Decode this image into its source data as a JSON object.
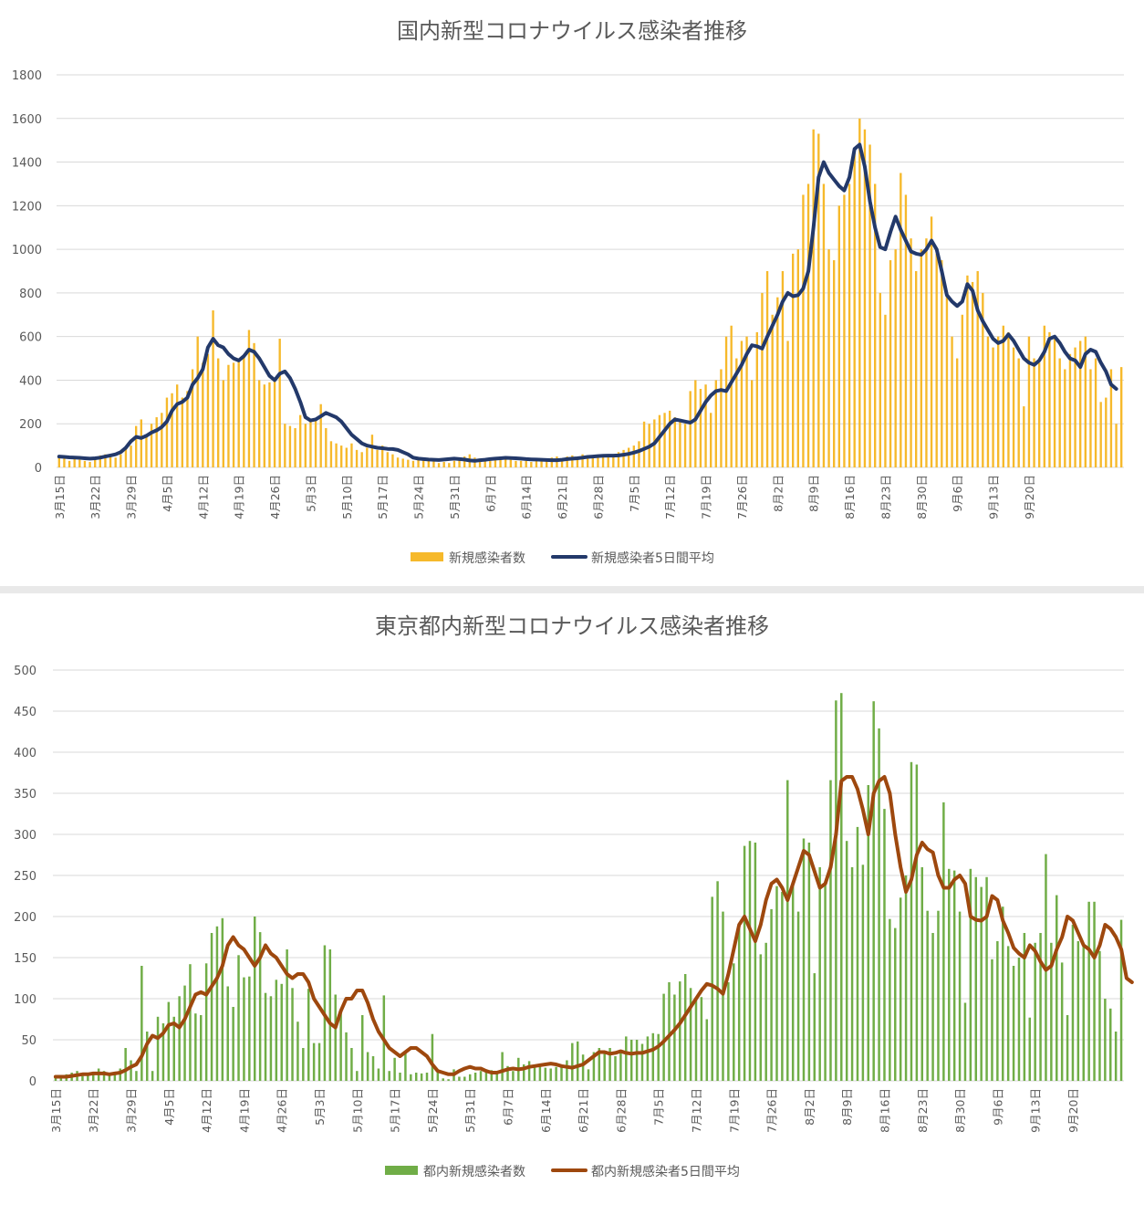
{
  "charts": [
    {
      "id": "national",
      "chart_data": {
        "type": "bar+line",
        "title": "国内新型コロナウイルス感染者推移",
        "ylim": [
          0,
          1800
        ],
        "yticks": [
          0,
          200,
          400,
          600,
          800,
          1000,
          1200,
          1400,
          1600,
          1800
        ],
        "grid": true,
        "legend": "bottom",
        "x_tick_labels": [
          "3月15日",
          "3月22日",
          "3月29日",
          "4月5日",
          "4月12日",
          "4月19日",
          "4月26日",
          "5月3日",
          "5月10日",
          "5月17日",
          "5月24日",
          "5月31日",
          "6月7日",
          "6月14日",
          "6月21日",
          "6月28日",
          "7月5日",
          "7月12日",
          "7月19日",
          "7月26日",
          "8月2日",
          "8月9日",
          "8月16日",
          "8月23日",
          "8月30日",
          "9月6日",
          "9月13日",
          "9月20日"
        ],
        "series": [
          {
            "name": "新規感染者数",
            "kind": "bar",
            "color": "#f6b92b",
            "values": [
              50,
              40,
              30,
              45,
              35,
              30,
              25,
              40,
              55,
              60,
              50,
              45,
              60,
              90,
              100,
              190,
              220,
              150,
              200,
              230,
              250,
              320,
              340,
              380,
              320,
              350,
              450,
              600,
              480,
              520,
              720,
              500,
              400,
              470,
              480,
              490,
              510,
              630,
              570,
              400,
              380,
              390,
              410,
              590,
              200,
              190,
              180,
              240,
              200,
              210,
              220,
              290,
              180,
              120,
              110,
              100,
              90,
              110,
              80,
              70,
              90,
              150,
              80,
              100,
              70,
              60,
              45,
              40,
              35,
              30,
              35,
              45,
              40,
              30,
              20,
              25,
              20,
              30,
              40,
              50,
              60,
              45,
              40,
              35,
              30,
              40,
              50,
              40,
              35,
              30,
              30,
              30,
              25,
              35,
              40,
              40,
              45,
              50,
              40,
              50,
              55,
              50,
              60,
              55,
              50,
              45,
              60,
              50,
              60,
              70,
              80,
              90,
              100,
              120,
              210,
              200,
              220,
              240,
              250,
              260,
              230,
              210,
              200,
              350,
              400,
              360,
              380,
              250,
              400,
              450,
              600,
              650,
              500,
              580,
              600,
              400,
              620,
              800,
              900,
              700,
              780,
              900,
              580,
              980,
              1000,
              1250,
              1300,
              1550,
              1530,
              1300,
              1000,
              950,
              1200,
              1250,
              1300,
              1450,
              1600,
              1550,
              1480,
              1300,
              800,
              700,
              950,
              1000,
              1350,
              1250,
              1050,
              900,
              1000,
              1050,
              1150,
              980,
              950,
              800,
              600,
              500,
              700,
              880,
              850,
              900,
              800,
              600,
              550,
              600,
              650,
              620,
              550,
              500,
              280,
              600,
              500,
              480,
              650,
              620,
              600,
              500,
              450,
              520,
              550,
              580,
              600,
              450,
              500,
              300,
              320,
              450,
              200,
              460
            ]
          },
          {
            "name": "新規感染者5日間平均",
            "kind": "line",
            "color": "#23396a",
            "values": [
              50,
              48,
              46,
              45,
              44,
              42,
              40,
              42,
              45,
              50,
              55,
              60,
              70,
              90,
              120,
              140,
              135,
              145,
              160,
              170,
              185,
              210,
              260,
              290,
              300,
              320,
              380,
              410,
              450,
              550,
              590,
              560,
              550,
              520,
              500,
              490,
              510,
              540,
              530,
              500,
              460,
              420,
              400,
              430,
              440,
              410,
              360,
              300,
              230,
              215,
              220,
              235,
              250,
              240,
              230,
              210,
              180,
              150,
              130,
              110,
              100,
              95,
              90,
              88,
              85,
              84,
              80,
              70,
              60,
              45,
              40,
              38,
              36,
              35,
              34,
              36,
              38,
              40,
              38,
              36,
              32,
              30,
              33,
              35,
              38,
              40,
              42,
              44,
              43,
              42,
              40,
              38,
              37,
              36,
              35,
              34,
              33,
              33,
              35,
              38,
              40,
              42,
              45,
              48,
              50,
              52,
              53,
              54,
              54,
              55,
              58,
              62,
              68,
              75,
              85,
              95,
              110,
              140,
              170,
              200,
              220,
              215,
              210,
              205,
              220,
              260,
              300,
              330,
              350,
              355,
              350,
              390,
              430,
              470,
              520,
              560,
              555,
              545,
              600,
              650,
              700,
              760,
              800,
              785,
              790,
              820,
              900,
              1100,
              1330,
              1400,
              1350,
              1320,
              1290,
              1270,
              1330,
              1460,
              1480,
              1380,
              1220,
              1100,
              1010,
              1000,
              1080,
              1150,
              1090,
              1040,
              990,
              980,
              975,
              1000,
              1040,
              1000,
              900,
              790,
              760,
              740,
              760,
              840,
              810,
              720,
              670,
              630,
              590,
              570,
              580,
              610,
              580,
              540,
              500,
              480,
              470,
              490,
              530,
              590,
              600,
              570,
              530,
              500,
              490,
              460,
              520,
              540,
              530,
              480,
              440,
              380,
              360
            ]
          }
        ]
      }
    },
    {
      "id": "tokyo",
      "chart_data": {
        "type": "bar+line",
        "title": "東京都内新型コロナウイルス感染者推移",
        "ylim": [
          0,
          500
        ],
        "yticks": [
          0,
          50,
          100,
          150,
          200,
          250,
          300,
          350,
          400,
          450,
          500
        ],
        "grid": true,
        "legend": "bottom",
        "x_tick_labels": [
          "3月15日",
          "3月22日",
          "3月29日",
          "4月5日",
          "4月12日",
          "4月19日",
          "4月26日",
          "5月3日",
          "5月10日",
          "5月17日",
          "5月24日",
          "5月31日",
          "6月7日",
          "6月14日",
          "6月21日",
          "6月28日",
          "7月5日",
          "7月12日",
          "7月19日",
          "7月26日",
          "8月2日",
          "8月9日",
          "8月16日",
          "8月23日",
          "8月30日",
          "9月6日",
          "9月13日",
          "9月20日"
        ],
        "series": [
          {
            "name": "都内新規感染者数",
            "kind": "bar",
            "color": "#70ad47",
            "values": [
              5,
              4,
              8,
              10,
              12,
              6,
              8,
              10,
              15,
              12,
              8,
              10,
              15,
              40,
              25,
              12,
              140,
              60,
              12,
              78,
              70,
              96,
              78,
              103,
              116,
              142,
              82,
              80,
              143,
              180,
              188,
              198,
              115,
              90,
              153,
              126,
              127,
              200,
              181,
              107,
              103,
              123,
              118,
              160,
              113,
              72,
              40,
              112,
              46,
              46,
              165,
              160,
              105,
              88,
              59,
              40,
              12,
              80,
              35,
              30,
              15,
              104,
              12,
              28,
              10,
              35,
              8,
              10,
              9,
              10,
              57,
              10,
              3,
              2,
              14,
              5,
              5,
              8,
              10,
              12,
              14,
              13,
              10,
              35,
              18,
              12,
              28,
              20,
              24,
              20,
              18,
              16,
              15,
              17,
              20,
              25,
              46,
              48,
              32,
              14,
              35,
              40,
              34,
              40,
              30,
              34,
              54,
              50,
              50,
              45,
              54,
              58,
              57,
              106,
              120,
              105,
              121,
              130,
              113,
              100,
              102,
              75,
              224,
              243,
              206,
              120,
              143,
              187,
              286,
              292,
              290,
              154,
              168,
              209,
              237,
              230,
              366,
              242,
              206,
              295,
              290,
              131,
              260,
              239,
              366,
              463,
              472,
              292,
              260,
              309,
              263,
              360,
              462,
              429,
              331,
              197,
              186,
              223,
              250,
              388,
              385,
              260,
              207,
              180,
              207,
              339,
              258,
              256,
              206,
              95,
              258,
              248,
              236,
              248,
              148,
              170,
              212,
              164,
              140,
              150,
              180,
              77,
              168,
              180,
              276,
              168,
              226,
              144,
              80,
              190,
              170,
              165,
              218,
              218,
              158,
              100,
              88,
              60,
              196
            ]
          },
          {
            "name": "都内新規感染者5日間平均",
            "kind": "line",
            "color": "#9e480e",
            "values": [
              5,
              5,
              5,
              6,
              7,
              8,
              8,
              9,
              9,
              9,
              8,
              9,
              10,
              13,
              17,
              20,
              30,
              45,
              55,
              52,
              58,
              68,
              70,
              65,
              75,
              90,
              105,
              108,
              105,
              115,
              125,
              140,
              165,
              175,
              165,
              160,
              150,
              140,
              150,
              165,
              155,
              150,
              140,
              130,
              125,
              130,
              130,
              120,
              100,
              90,
              80,
              70,
              65,
              85,
              100,
              100,
              110,
              110,
              95,
              75,
              60,
              50,
              40,
              35,
              30,
              35,
              40,
              40,
              35,
              30,
              20,
              12,
              10,
              8,
              8,
              12,
              15,
              17,
              15,
              15,
              12,
              10,
              10,
              12,
              14,
              15,
              14,
              15,
              17,
              18,
              19,
              20,
              21,
              20,
              18,
              17,
              16,
              18,
              20,
              25,
              30,
              35,
              35,
              33,
              34,
              36,
              34,
              33,
              34,
              34,
              36,
              38,
              42,
              48,
              55,
              62,
              70,
              80,
              90,
              100,
              110,
              118,
              116,
              112,
              106,
              130,
              160,
              190,
              200,
              185,
              170,
              190,
              220,
              240,
              245,
              235,
              220,
              240,
              260,
              280,
              275,
              255,
              235,
              240,
              260,
              300,
              365,
              370,
              370,
              355,
              330,
              300,
              350,
              365,
              370,
              350,
              300,
              260,
              230,
              245,
              275,
              290,
              282,
              278,
              250,
              235,
              235,
              245,
              250,
              240,
              200,
              196,
              195,
              200,
              225,
              220,
              195,
              180,
              162,
              155,
              150,
              165,
              158,
              145,
              135,
              140,
              160,
              175,
              200,
              195,
              180,
              165,
              160,
              150,
              165,
              190,
              185,
              175,
              160,
              125,
              120
            ]
          }
        ]
      }
    }
  ]
}
